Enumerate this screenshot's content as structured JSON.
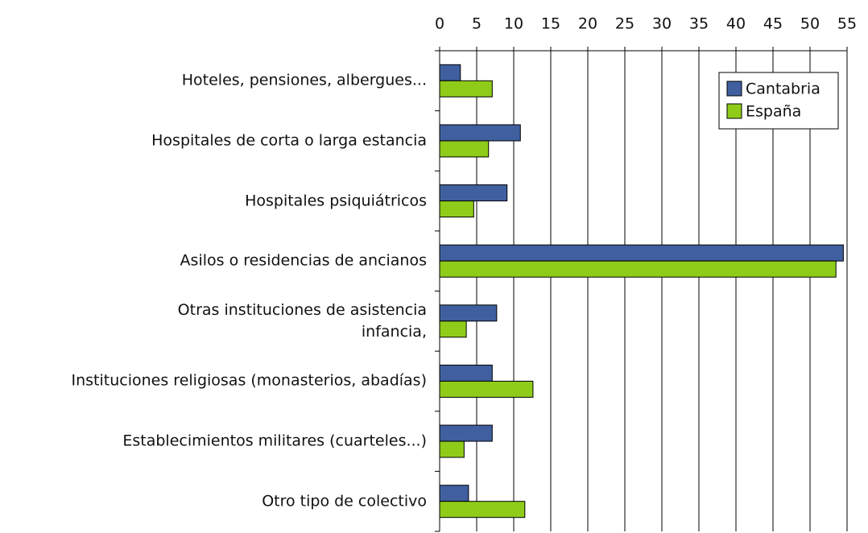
{
  "chart_data": {
    "type": "hbar",
    "categories": [
      "Hoteles, pensiones, albergues...",
      "Hospitales de corta o larga estancia",
      "Hospitales psiquiátricos",
      "Asilos o residencias de ancianos",
      "Otras instituciones de asistencia\ninfancia,",
      "Instituciones religiosas (monasterios, abadías)",
      "Establecimientos militares (cuarteles...)",
      "Otro tipo de colectivo"
    ],
    "series": [
      {
        "name": "Cantabria",
        "color": "#3f5f9f",
        "values": [
          2.8,
          10.9,
          9.1,
          54.5,
          7.7,
          7.1,
          7.1,
          3.9
        ]
      },
      {
        "name": "España",
        "color": "#8fcc1a",
        "values": [
          7.1,
          6.6,
          4.6,
          53.5,
          3.6,
          12.6,
          3.3,
          11.5
        ]
      }
    ],
    "xlim": [
      0,
      55
    ],
    "xticks": [
      0,
      5,
      10,
      15,
      20,
      25,
      30,
      35,
      40,
      45,
      50,
      55
    ],
    "grid": true,
    "legend": "upper right"
  }
}
